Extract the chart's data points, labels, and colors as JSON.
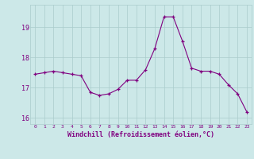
{
  "x": [
    0,
    1,
    2,
    3,
    4,
    5,
    6,
    7,
    8,
    9,
    10,
    11,
    12,
    13,
    14,
    15,
    16,
    17,
    18,
    19,
    20,
    21,
    22,
    23
  ],
  "y": [
    17.45,
    17.5,
    17.55,
    17.5,
    17.45,
    17.4,
    16.85,
    16.75,
    16.8,
    16.95,
    17.25,
    17.25,
    17.6,
    18.3,
    19.35,
    19.35,
    18.55,
    17.65,
    17.55,
    17.55,
    17.45,
    17.1,
    16.8,
    16.2
  ],
  "line_color": "#800080",
  "marker": "+",
  "marker_color": "#800080",
  "bg_color": "#cce8e8",
  "grid_color": "#aacccc",
  "xlabel": "Windchill (Refroidissement éolien,°C)",
  "xlabel_color": "#800080",
  "tick_color": "#800080",
  "ylim": [
    15.8,
    19.75
  ],
  "yticks": [
    16,
    17,
    18,
    19
  ],
  "xlim": [
    -0.5,
    23.5
  ],
  "xticks": [
    0,
    1,
    2,
    3,
    4,
    5,
    6,
    7,
    8,
    9,
    10,
    11,
    12,
    13,
    14,
    15,
    16,
    17,
    18,
    19,
    20,
    21,
    22,
    23
  ]
}
